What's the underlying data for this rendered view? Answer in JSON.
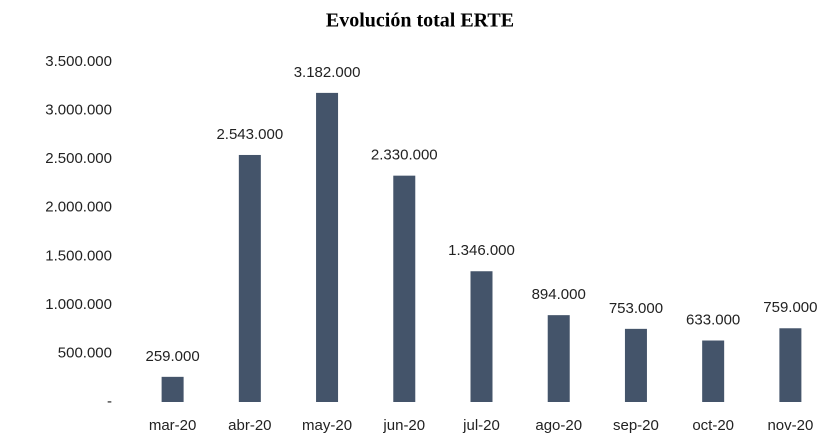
{
  "chart_data": {
    "type": "bar",
    "title": "Evolución total ERTE",
    "categories": [
      "mar-20",
      "abr-20",
      "may-20",
      "jun-20",
      "jul-20",
      "ago-20",
      "sep-20",
      "oct-20",
      "nov-20"
    ],
    "values": [
      259000,
      2543000,
      3182000,
      2330000,
      1346000,
      894000,
      753000,
      633000,
      759000
    ],
    "value_labels": [
      "259.000",
      "2.543.000",
      "3.182.000",
      "2.330.000",
      "1.346.000",
      "894.000",
      "753.000",
      "633.000",
      "759.000"
    ],
    "color": "#44546a",
    "ylim": [
      0,
      3500000
    ],
    "yticks": [
      {
        "value": 0,
        "label": "-"
      },
      {
        "value": 500000,
        "label": "500.000"
      },
      {
        "value": 1000000,
        "label": "1.000.000"
      },
      {
        "value": 1500000,
        "label": "1.500.000"
      },
      {
        "value": 2000000,
        "label": "2.000.000"
      },
      {
        "value": 2500000,
        "label": "2.500.000"
      },
      {
        "value": 3000000,
        "label": "3.000.000"
      },
      {
        "value": 3500000,
        "label": "3.500.000"
      }
    ],
    "grid": false
  }
}
